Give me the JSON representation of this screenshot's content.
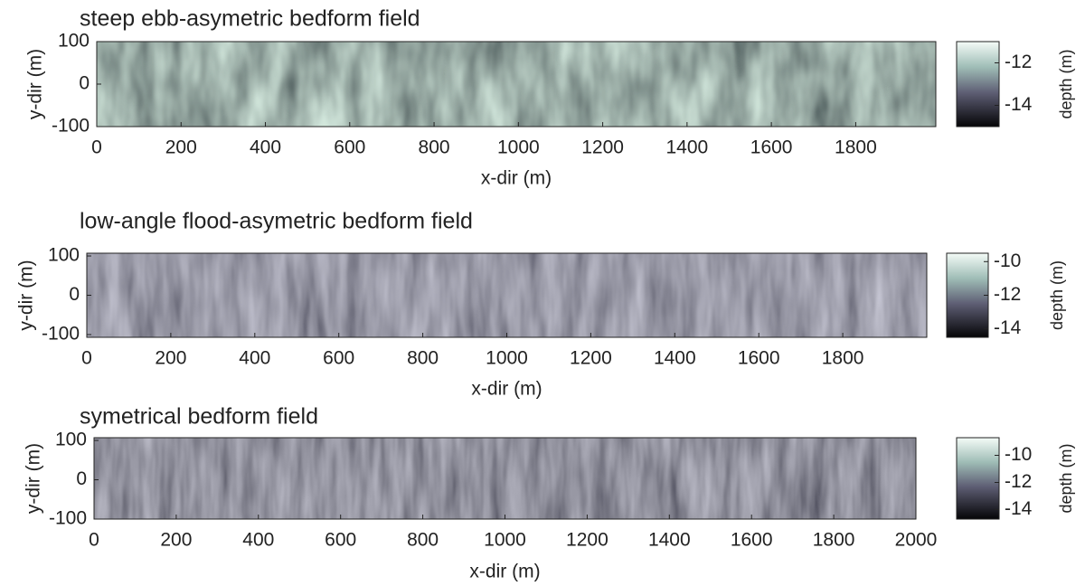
{
  "chart_data": [
    {
      "type": "heatmap",
      "title": "steep ebb-asymetric bedform field",
      "xlabel": "x-dir (m)",
      "ylabel": "y-dir (m)",
      "xlim": [
        0,
        1990
      ],
      "ylim": [
        -100,
        100
      ],
      "xticks": [
        0,
        200,
        400,
        600,
        800,
        1000,
        1200,
        1400,
        1600,
        1800
      ],
      "yticks": [
        100,
        0,
        -100
      ],
      "colorbar": {
        "label": "depth (m)",
        "clim": [
          -15,
          -11
        ],
        "ticks": [
          -12,
          -14
        ]
      }
    },
    {
      "type": "heatmap",
      "title": "low-angle flood-asymetric bedform field",
      "xlabel": "x-dir (m)",
      "ylabel": "y-dir (m)",
      "xlim": [
        0,
        2000
      ],
      "ylim": [
        -107,
        107
      ],
      "xticks": [
        0,
        200,
        400,
        600,
        800,
        1000,
        1200,
        1400,
        1600,
        1800
      ],
      "yticks": [
        100,
        0,
        -100
      ],
      "colorbar": {
        "label": "depth (m)",
        "clim": [
          -14.5,
          -9.5
        ],
        "ticks": [
          -10,
          -12,
          -14
        ]
      }
    },
    {
      "type": "heatmap",
      "title": "symetrical bedform field",
      "xlabel": "x-dir (m)",
      "ylabel": "y-dir (m)",
      "xlim": [
        0,
        2000
      ],
      "ylim": [
        -100,
        107
      ],
      "xticks": [
        0,
        200,
        400,
        600,
        800,
        1000,
        1200,
        1400,
        1600,
        1800,
        2000
      ],
      "yticks": [
        100,
        0,
        -100
      ],
      "colorbar": {
        "label": "depth (m)",
        "clim": [
          -14.7,
          -8.7
        ],
        "ticks": [
          -10,
          -12,
          -14
        ]
      }
    }
  ]
}
